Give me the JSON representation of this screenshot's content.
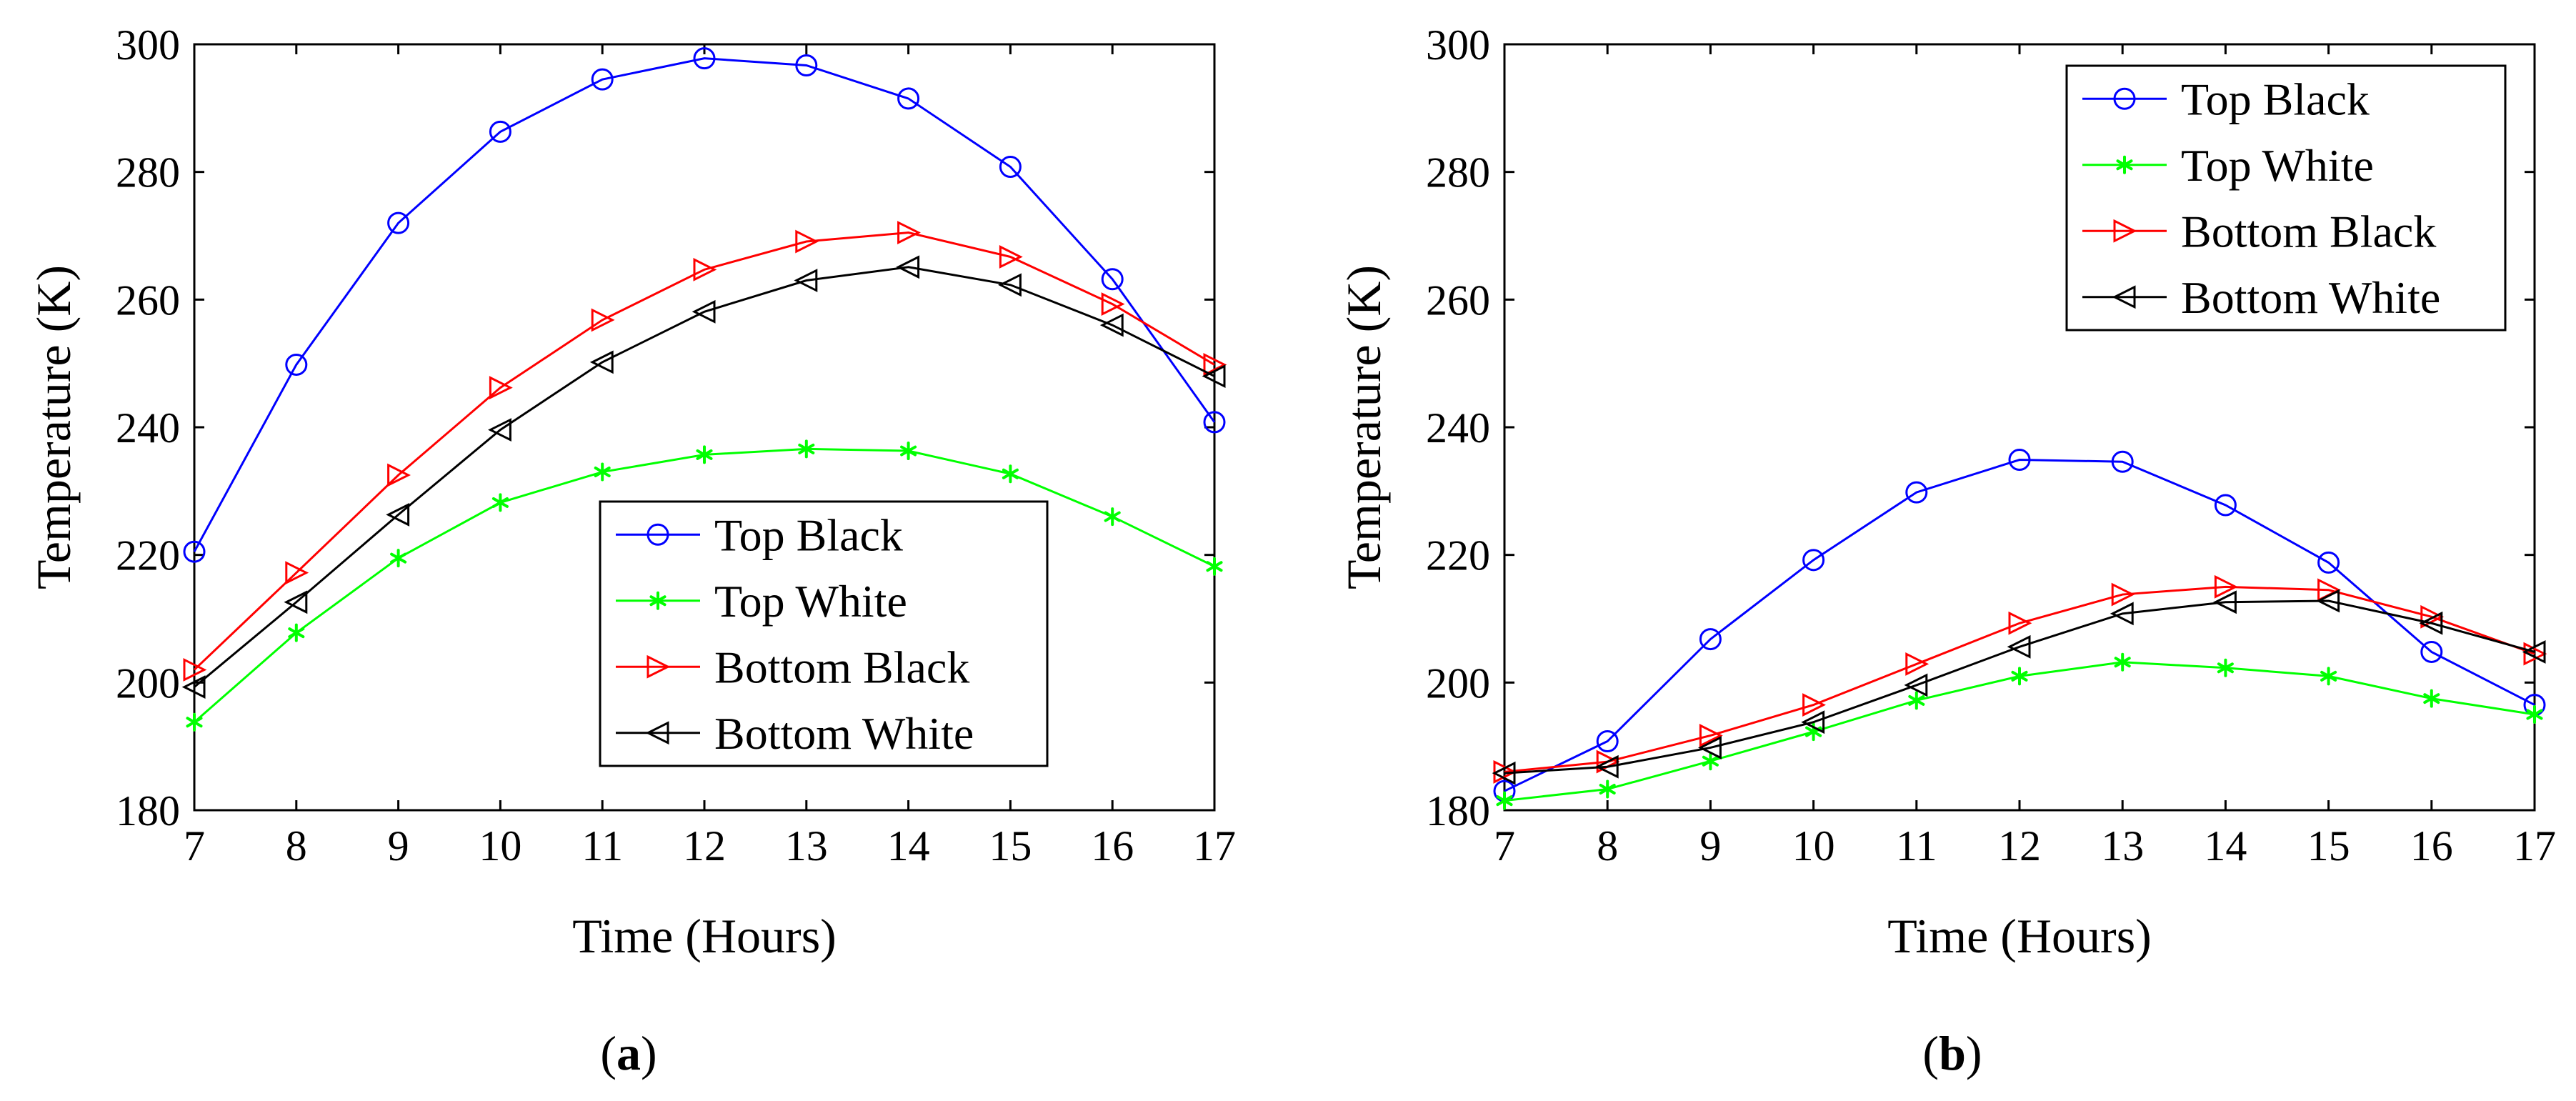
{
  "chart_data": [
    {
      "type": "line",
      "panel_label": "a",
      "xlabel": "Time (Hours)",
      "ylabel": "Temperature (K)",
      "xlim": [
        7,
        17
      ],
      "ylim": [
        180,
        300
      ],
      "x": [
        7,
        8,
        9,
        10,
        11,
        12,
        13,
        14,
        15,
        16,
        17
      ],
      "xticks": [
        7,
        8,
        9,
        10,
        11,
        12,
        13,
        14,
        15,
        16,
        17
      ],
      "yticks": [
        180,
        200,
        220,
        240,
        260,
        280,
        300
      ],
      "grid": false,
      "legend_position": "bottom-right",
      "series": [
        {
          "name": "Top Black",
          "color": "#0000ff",
          "marker": "circle",
          "values": [
            220.5,
            249.8,
            272.0,
            286.3,
            294.5,
            297.8,
            296.7,
            291.5,
            280.8,
            263.2,
            240.8
          ]
        },
        {
          "name": "Top White",
          "color": "#00ff00",
          "marker": "asterisk",
          "values": [
            193.8,
            207.8,
            219.5,
            228.2,
            233.0,
            235.7,
            236.6,
            236.3,
            232.7,
            226.0,
            218.2
          ]
        },
        {
          "name": "Bottom Black",
          "color": "#ff0000",
          "marker": "triangle-right",
          "values": [
            202.0,
            217.2,
            232.5,
            246.2,
            256.8,
            264.7,
            269.1,
            270.5,
            266.7,
            259.3,
            249.8
          ]
        },
        {
          "name": "Bottom White",
          "color": "#000000",
          "marker": "triangle-left",
          "values": [
            199.3,
            212.6,
            226.3,
            239.6,
            250.2,
            258.1,
            263.0,
            265.1,
            262.3,
            256.0,
            248.0
          ]
        }
      ]
    },
    {
      "type": "line",
      "panel_label": "b",
      "xlabel": "Time (Hours)",
      "ylabel": "Temperature (K)",
      "xlim": [
        7,
        17
      ],
      "ylim": [
        180,
        300
      ],
      "x": [
        7,
        8,
        9,
        10,
        11,
        12,
        13,
        14,
        15,
        16,
        17
      ],
      "xticks": [
        7,
        8,
        9,
        10,
        11,
        12,
        13,
        14,
        15,
        16,
        17
      ],
      "yticks": [
        180,
        200,
        220,
        240,
        260,
        280,
        300
      ],
      "grid": false,
      "legend_position": "top-right",
      "series": [
        {
          "name": "Top Black",
          "color": "#0000ff",
          "marker": "circle",
          "values": [
            183.0,
            190.8,
            206.8,
            219.2,
            229.8,
            234.9,
            234.6,
            227.8,
            218.8,
            204.8,
            196.5
          ]
        },
        {
          "name": "Top White",
          "color": "#00ff00",
          "marker": "asterisk",
          "values": [
            181.5,
            183.3,
            187.7,
            192.3,
            197.2,
            201.0,
            203.2,
            202.3,
            201.0,
            197.5,
            195.0
          ]
        },
        {
          "name": "Bottom Black",
          "color": "#ff0000",
          "marker": "triangle-right",
          "values": [
            186.0,
            187.6,
            191.7,
            196.5,
            202.9,
            209.3,
            213.8,
            215.0,
            214.5,
            210.3,
            204.5
          ]
        },
        {
          "name": "Bottom White",
          "color": "#000000",
          "marker": "triangle-left",
          "values": [
            185.8,
            186.8,
            189.8,
            193.8,
            199.6,
            205.6,
            210.8,
            212.6,
            212.8,
            209.3,
            204.8
          ]
        }
      ]
    }
  ],
  "captions": {
    "a": "a",
    "b": "b"
  }
}
